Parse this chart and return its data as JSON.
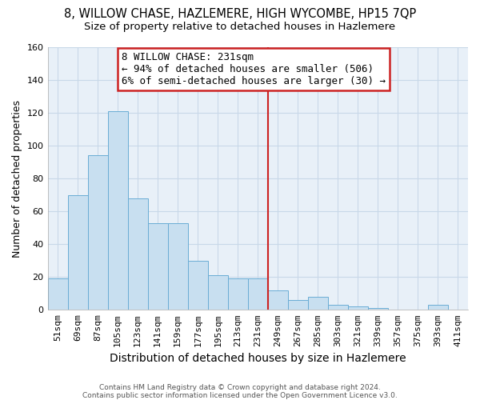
{
  "title": "8, WILLOW CHASE, HAZLEMERE, HIGH WYCOMBE, HP15 7QP",
  "subtitle": "Size of property relative to detached houses in Hazlemere",
  "xlabel": "Distribution of detached houses by size in Hazlemere",
  "ylabel": "Number of detached properties",
  "footnote1": "Contains HM Land Registry data © Crown copyright and database right 2024.",
  "footnote2": "Contains public sector information licensed under the Open Government Licence v3.0.",
  "bar_labels": [
    "51sqm",
    "69sqm",
    "87sqm",
    "105sqm",
    "123sqm",
    "141sqm",
    "159sqm",
    "177sqm",
    "195sqm",
    "213sqm",
    "231sqm",
    "249sqm",
    "267sqm",
    "285sqm",
    "303sqm",
    "321sqm",
    "339sqm",
    "357sqm",
    "375sqm",
    "393sqm",
    "411sqm"
  ],
  "bar_heights": [
    19,
    70,
    94,
    121,
    68,
    53,
    53,
    30,
    21,
    19,
    19,
    12,
    6,
    8,
    3,
    2,
    1,
    0,
    0,
    3,
    0
  ],
  "bar_color": "#c8dff0",
  "bar_edge_color": "#6aadd5",
  "vline_color": "#cc2222",
  "annotation_text": "8 WILLOW CHASE: 231sqm\n← 94% of detached houses are smaller (506)\n6% of semi-detached houses are larger (30) →",
  "annotation_box_color": "#cc2222",
  "ylim": [
    0,
    160
  ],
  "yticks": [
    0,
    20,
    40,
    60,
    80,
    100,
    120,
    140,
    160
  ],
  "grid_color": "#c8d8e8",
  "background_color": "#e8f0f8",
  "title_fontsize": 10.5,
  "subtitle_fontsize": 9.5,
  "annotation_fontsize": 9,
  "tick_fontsize": 8,
  "ylabel_fontsize": 9,
  "xlabel_fontsize": 10
}
